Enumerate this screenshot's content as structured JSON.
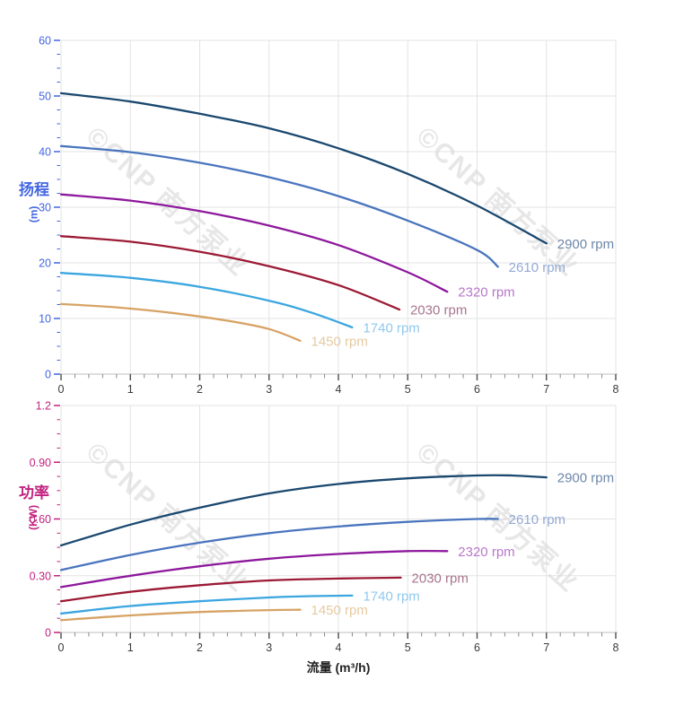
{
  "watermark": {
    "text": "©CNP 南方泵业",
    "color": "#d8d8d8"
  },
  "chart_data": [
    {
      "id": "head",
      "type": "line",
      "title": "",
      "xlabel": "",
      "ylabel": "扬程",
      "ylabel_unit": "(m)",
      "axis_accent": "#4366e0",
      "x_tick_color": "#3b3b3b",
      "grid": true,
      "legend_position": "end-of-curve",
      "xlim": [
        0,
        8
      ],
      "ylim": [
        0,
        60
      ],
      "xtick_values": [
        0,
        1,
        2,
        3,
        4,
        5,
        6,
        7,
        8
      ],
      "xtick_labels": [
        "0",
        "1",
        "2",
        "3",
        "4",
        "5",
        "6",
        "7",
        "8"
      ],
      "ytick_values": [
        0,
        10,
        20,
        30,
        40,
        50,
        60
      ],
      "ytick_labels": [
        "0",
        "10",
        "20",
        "30",
        "40",
        "50",
        "60"
      ],
      "x_minor_step": 0.2,
      "y_minor_step": 2.5,
      "series": [
        {
          "name": "2900 rpm",
          "color": "#1a486f",
          "label_color": "#6d87a8",
          "points": [
            [
              0,
              50.5
            ],
            [
              1,
              49.0
            ],
            [
              2,
              46.8
            ],
            [
              3,
              44.2
            ],
            [
              4,
              40.6
            ],
            [
              5,
              36.0
            ],
            [
              6,
              30.3
            ],
            [
              7,
              23.5
            ]
          ]
        },
        {
          "name": "2610 rpm",
          "color": "#4a75bd",
          "label_color": "#93a9d4",
          "points": [
            [
              0,
              41.0
            ],
            [
              1,
              39.9
            ],
            [
              2,
              38.0
            ],
            [
              3,
              35.4
            ],
            [
              4,
              32.0
            ],
            [
              5,
              27.6
            ],
            [
              6,
              22.3
            ],
            [
              6.3,
              19.3
            ]
          ]
        },
        {
          "name": "2320 rpm",
          "color": "#8d189c",
          "label_color": "#b877cb",
          "points": [
            [
              0,
              32.3
            ],
            [
              1,
              31.2
            ],
            [
              2,
              29.3
            ],
            [
              3,
              26.7
            ],
            [
              4,
              23.2
            ],
            [
              5,
              18.3
            ],
            [
              5.57,
              14.8
            ]
          ]
        },
        {
          "name": "2030 rpm",
          "color": "#9c1a35",
          "label_color": "#a8758d",
          "points": [
            [
              0,
              24.8
            ],
            [
              1,
              23.8
            ],
            [
              2,
              22.0
            ],
            [
              3,
              19.4
            ],
            [
              4,
              16.0
            ],
            [
              4.88,
              11.6
            ]
          ]
        },
        {
          "name": "1740 rpm",
          "color": "#3ba6e0",
          "label_color": "#90c9ed",
          "points": [
            [
              0,
              18.2
            ],
            [
              1,
              17.3
            ],
            [
              2,
              15.7
            ],
            [
              3,
              13.2
            ],
            [
              3.6,
              11.1
            ],
            [
              4.2,
              8.4
            ]
          ]
        },
        {
          "name": "1450 rpm",
          "color": "#d7a365",
          "label_color": "#e6caa0",
          "points": [
            [
              0,
              12.6
            ],
            [
              0.8,
              12.0
            ],
            [
              1.6,
              11.0
            ],
            [
              2.4,
              9.6
            ],
            [
              3,
              8.1
            ],
            [
              3.45,
              6.0
            ]
          ]
        }
      ]
    },
    {
      "id": "power",
      "type": "line",
      "title": "",
      "xlabel": "流量 (m³/h)",
      "ylabel": "功率",
      "ylabel_unit": "(KW)",
      "axis_accent": "#c2227f",
      "x_tick_color": "#3b3b3b",
      "grid": true,
      "legend_position": "end-of-curve",
      "xlim": [
        0,
        8
      ],
      "ylim": [
        0,
        1.2
      ],
      "xtick_values": [
        0,
        1,
        2,
        3,
        4,
        5,
        6,
        7,
        8
      ],
      "xtick_labels": [
        "0",
        "1",
        "2",
        "3",
        "4",
        "5",
        "6",
        "7",
        "8"
      ],
      "ytick_values": [
        0,
        0.3,
        0.6,
        0.9,
        1.2
      ],
      "ytick_labels": [
        "0",
        "0.30",
        "0.60",
        "0.90",
        "1.2"
      ],
      "x_minor_step": 0.2,
      "y_minor_step": 0.075,
      "series": [
        {
          "name": "2900 rpm",
          "color": "#1a486f",
          "label_color": "#6d87a8",
          "points": [
            [
              0,
              0.46
            ],
            [
              1,
              0.57
            ],
            [
              2,
              0.66
            ],
            [
              3,
              0.735
            ],
            [
              4,
              0.785
            ],
            [
              5,
              0.815
            ],
            [
              6,
              0.83
            ],
            [
              6.5,
              0.83
            ],
            [
              7,
              0.82
            ]
          ]
        },
        {
          "name": "2610 rpm",
          "color": "#4a75bd",
          "label_color": "#93a9d4",
          "points": [
            [
              0,
              0.33
            ],
            [
              1,
              0.41
            ],
            [
              2,
              0.475
            ],
            [
              3,
              0.525
            ],
            [
              4,
              0.56
            ],
            [
              5,
              0.585
            ],
            [
              6,
              0.6
            ],
            [
              6.3,
              0.6
            ]
          ]
        },
        {
          "name": "2320 rpm",
          "color": "#8d189c",
          "label_color": "#b877cb",
          "points": [
            [
              0,
              0.24
            ],
            [
              1,
              0.3
            ],
            [
              2,
              0.35
            ],
            [
              3,
              0.39
            ],
            [
              4,
              0.415
            ],
            [
              5,
              0.43
            ],
            [
              5.57,
              0.43
            ]
          ]
        },
        {
          "name": "2030 rpm",
          "color": "#9c1a35",
          "label_color": "#a8758d",
          "points": [
            [
              0,
              0.165
            ],
            [
              1,
              0.215
            ],
            [
              2,
              0.25
            ],
            [
              3,
              0.275
            ],
            [
              4,
              0.285
            ],
            [
              4.9,
              0.29
            ]
          ]
        },
        {
          "name": "1740 rpm",
          "color": "#3ba6e0",
          "label_color": "#90c9ed",
          "points": [
            [
              0,
              0.1
            ],
            [
              1,
              0.14
            ],
            [
              2,
              0.165
            ],
            [
              3,
              0.185
            ],
            [
              3.6,
              0.192
            ],
            [
              4.2,
              0.195
            ]
          ]
        },
        {
          "name": "1450 rpm",
          "color": "#d7a365",
          "label_color": "#e6caa0",
          "points": [
            [
              0,
              0.065
            ],
            [
              1,
              0.09
            ],
            [
              2,
              0.108
            ],
            [
              3,
              0.118
            ],
            [
              3.45,
              0.12
            ]
          ]
        }
      ]
    }
  ]
}
